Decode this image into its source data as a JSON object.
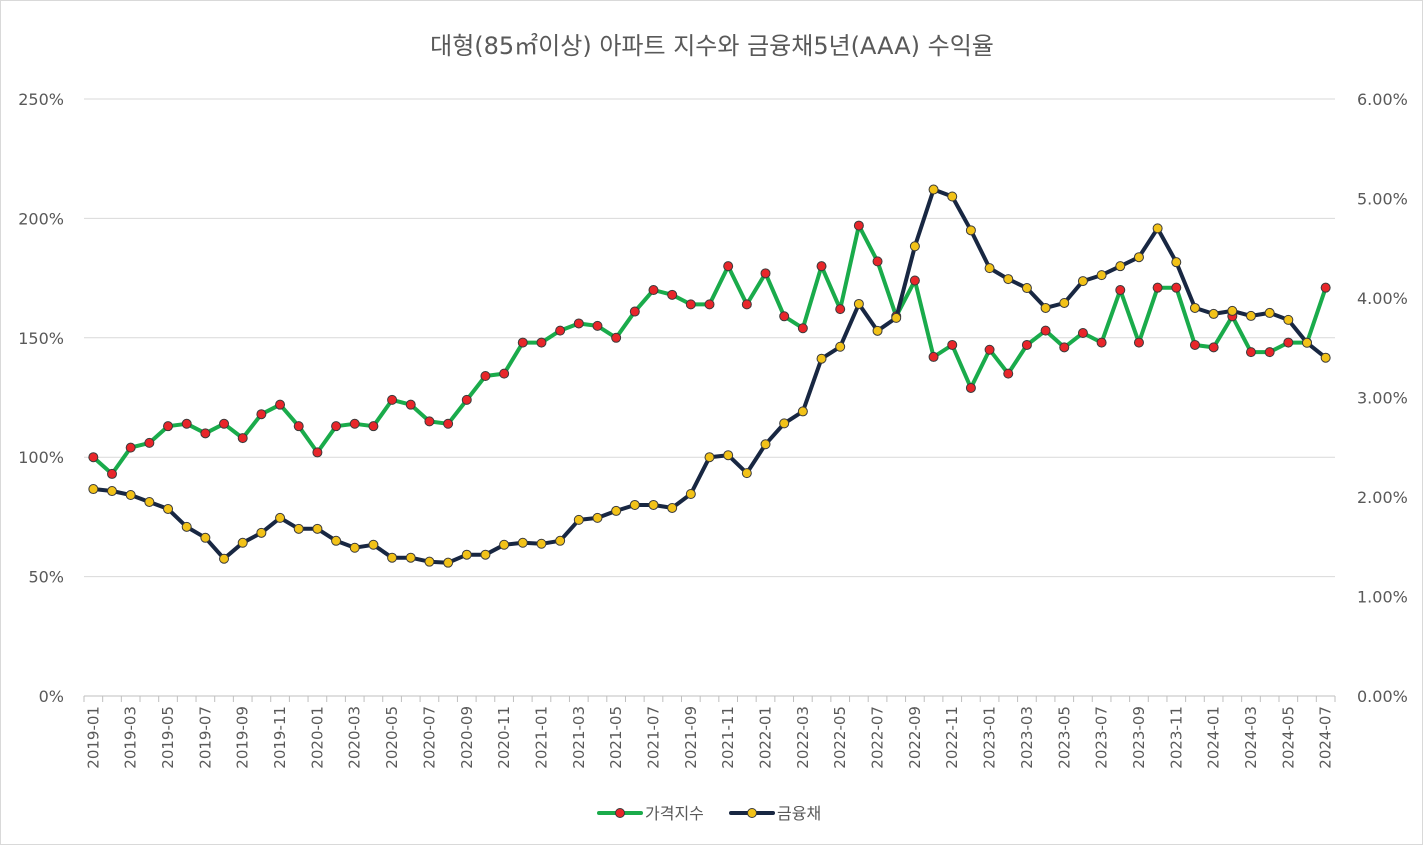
{
  "chart_data": {
    "type": "line",
    "title": "대형(85㎡이상) 아파트 지수와 금융채5년(AAA) 수익율",
    "x": [
      "2019-01",
      "2019-02",
      "2019-03",
      "2019-04",
      "2019-05",
      "2019-06",
      "2019-07",
      "2019-08",
      "2019-09",
      "2019-10",
      "2019-11",
      "2019-12",
      "2020-01",
      "2020-02",
      "2020-03",
      "2020-04",
      "2020-05",
      "2020-06",
      "2020-07",
      "2020-08",
      "2020-09",
      "2020-10",
      "2020-11",
      "2020-12",
      "2021-01",
      "2021-02",
      "2021-03",
      "2021-04",
      "2021-05",
      "2021-06",
      "2021-07",
      "2021-08",
      "2021-09",
      "2021-10",
      "2021-11",
      "2021-12",
      "2022-01",
      "2022-02",
      "2022-03",
      "2022-04",
      "2022-05",
      "2022-06",
      "2022-07",
      "2022-08",
      "2022-09",
      "2022-10",
      "2022-11",
      "2022-12",
      "2023-01",
      "2023-02",
      "2023-03",
      "2023-04",
      "2023-05",
      "2023-06",
      "2023-07",
      "2023-08",
      "2023-09",
      "2023-10",
      "2023-11",
      "2023-12",
      "2024-01",
      "2024-02",
      "2024-03",
      "2024-04",
      "2024-05",
      "2024-06",
      "2024-07"
    ],
    "x_tick_labels": [
      "2019-01",
      "2019-03",
      "2019-05",
      "2019-07",
      "2019-09",
      "2019-11",
      "2020-01",
      "2020-03",
      "2020-05",
      "2020-07",
      "2020-09",
      "2020-11",
      "2021-01",
      "2021-03",
      "2021-05",
      "2021-07",
      "2021-09",
      "2021-11",
      "2022-01",
      "2022-03",
      "2022-05",
      "2022-07",
      "2022-09",
      "2022-11",
      "2023-01",
      "2023-03",
      "2023-05",
      "2023-07",
      "2023-09",
      "2023-11",
      "2024-01",
      "2024-03",
      "2024-05",
      "2024-07"
    ],
    "y_left": {
      "min": 0,
      "max": 250,
      "ticks": [
        "0%",
        "50%",
        "100%",
        "150%",
        "200%",
        "250%"
      ]
    },
    "y_right": {
      "min": 0,
      "max": 6,
      "ticks": [
        "0.00%",
        "1.00%",
        "2.00%",
        "3.00%",
        "4.00%",
        "5.00%",
        "6.00%"
      ]
    },
    "grid": true,
    "legend_position": "bottom",
    "series": [
      {
        "name": "가격지수",
        "axis": "left",
        "color": "#1aab4b",
        "marker_color": "#e8262a",
        "values": [
          100,
          93,
          104,
          106,
          113,
          114,
          110,
          114,
          108,
          118,
          122,
          113,
          102,
          113,
          114,
          113,
          124,
          122,
          115,
          114,
          124,
          134,
          135,
          148,
          148,
          153,
          156,
          155,
          150,
          161,
          170,
          168,
          164,
          164,
          180,
          164,
          177,
          159,
          154,
          180,
          162,
          197,
          182,
          159,
          174,
          142,
          147,
          129,
          145,
          135,
          147,
          153,
          146,
          152,
          148,
          170,
          148,
          171,
          171,
          147,
          146,
          159,
          144,
          144,
          148,
          148,
          171
        ]
      },
      {
        "name": "금융채",
        "axis": "right",
        "color": "#182742",
        "marker_color": "#f2c218",
        "values": [
          2.08,
          2.06,
          2.02,
          1.95,
          1.88,
          1.7,
          1.59,
          1.38,
          1.54,
          1.64,
          1.79,
          1.68,
          1.68,
          1.56,
          1.49,
          1.52,
          1.39,
          1.39,
          1.35,
          1.34,
          1.42,
          1.42,
          1.52,
          1.54,
          1.53,
          1.56,
          1.77,
          1.79,
          1.86,
          1.92,
          1.92,
          1.89,
          2.03,
          2.4,
          2.42,
          2.24,
          2.53,
          2.74,
          2.86,
          3.39,
          3.51,
          3.94,
          3.67,
          3.8,
          4.52,
          5.09,
          5.02,
          4.68,
          4.3,
          4.19,
          4.1,
          3.9,
          3.95,
          4.17,
          4.23,
          4.32,
          4.41,
          4.7,
          4.36,
          3.9,
          3.84,
          3.87,
          3.82,
          3.85,
          3.78,
          3.55,
          3.4
        ]
      }
    ]
  }
}
